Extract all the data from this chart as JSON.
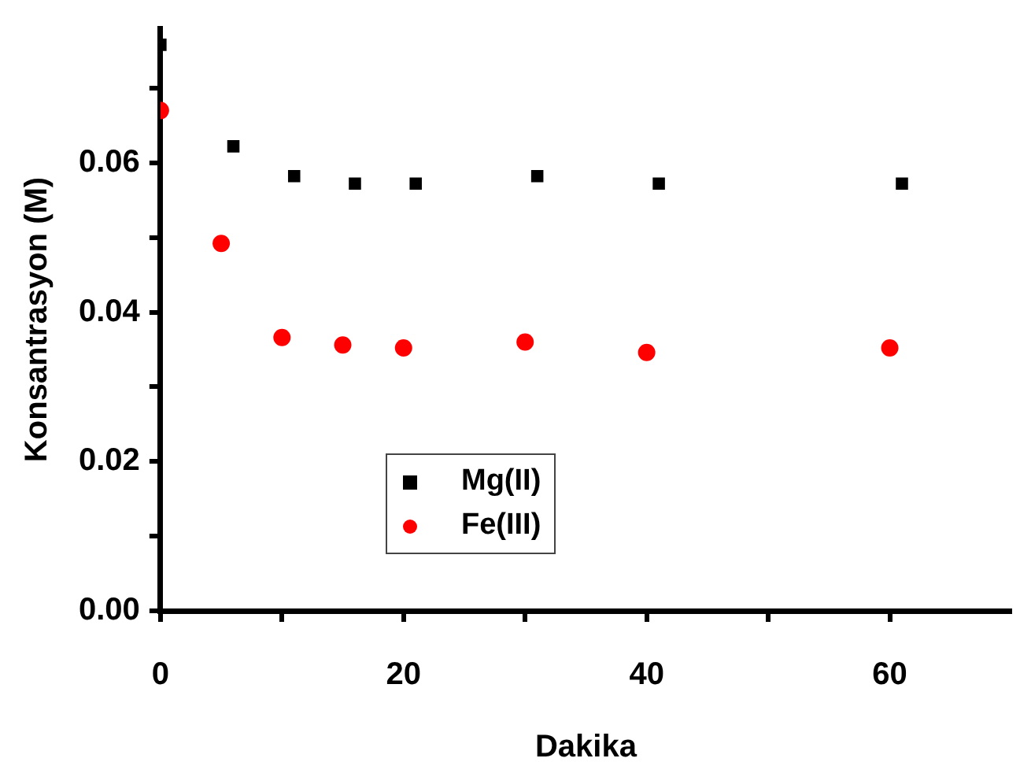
{
  "chart_data": {
    "type": "scatter",
    "xlabel": "Dakika",
    "ylabel": "Konsantrasyon (M)",
    "xlim": [
      0,
      70
    ],
    "ylim": [
      0,
      0.078
    ],
    "xticks": [
      0,
      {
        "value": 10,
        "label": null
      },
      20,
      {
        "value": 30,
        "label": null
      },
      40,
      {
        "value": 50,
        "label": null
      },
      60
    ],
    "yticks": [
      {
        "value": 0,
        "label": "0.00"
      },
      {
        "value": 0.01,
        "label": null
      },
      {
        "value": 0.02,
        "label": "0.02"
      },
      {
        "value": 0.03,
        "label": null
      },
      {
        "value": 0.04,
        "label": "0.04"
      },
      {
        "value": 0.05,
        "label": null
      },
      {
        "value": 0.06,
        "label": "0.06"
      },
      {
        "value": 0.07,
        "label": null
      }
    ],
    "grid": false,
    "legend": "bottom",
    "series": [
      {
        "name": "Mg(II)",
        "color": "#000000",
        "marker": "square",
        "x": [
          0,
          6,
          11,
          16,
          21,
          31,
          41,
          61
        ],
        "values": [
          0.0758,
          0.0622,
          0.0582,
          0.0572,
          0.0572,
          0.0582,
          0.0572,
          0.0572
        ]
      },
      {
        "name": "Fe(III)",
        "color": "#ff0000",
        "marker": "circle",
        "x": [
          0,
          5,
          10,
          15,
          20,
          30,
          40,
          60
        ],
        "values": [
          0.067,
          0.0492,
          0.0366,
          0.0356,
          0.0352,
          0.036,
          0.0346,
          0.0352
        ]
      }
    ]
  }
}
